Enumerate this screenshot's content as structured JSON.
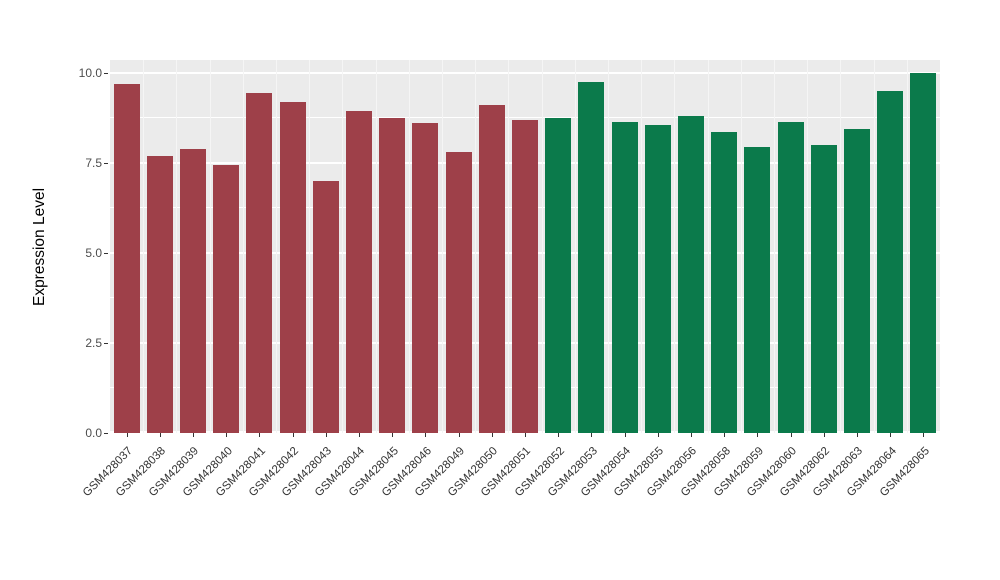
{
  "chart_data": {
    "type": "bar",
    "title": "",
    "xlabel": "",
    "ylabel": "Expression Level",
    "ylim": [
      0,
      10.36
    ],
    "yticks": [
      "0.0",
      "2.5",
      "5.0",
      "7.5",
      "10.0"
    ],
    "ytick_values": [
      0,
      2.5,
      5,
      7.5,
      10
    ],
    "ytick_minor_values": [
      1.25,
      3.75,
      6.25,
      8.75
    ],
    "grid": "on",
    "legend_position": "none",
    "panel_background": "#EBEBEB",
    "grid_color": "#FFFFFF",
    "categories": [
      "GSM428037",
      "GSM428038",
      "GSM428039",
      "GSM428040",
      "GSM428041",
      "GSM428042",
      "GSM428043",
      "GSM428044",
      "GSM428045",
      "GSM428046",
      "GSM428049",
      "GSM428050",
      "GSM428051",
      "GSM428052",
      "GSM428053",
      "GSM428054",
      "GSM428055",
      "GSM428056",
      "GSM428058",
      "GSM428059",
      "GSM428060",
      "GSM428062",
      "GSM428063",
      "GSM428064",
      "GSM428065"
    ],
    "values": [
      9.7,
      7.7,
      7.9,
      7.45,
      9.45,
      9.2,
      7.0,
      8.95,
      8.75,
      8.6,
      7.8,
      9.1,
      8.7,
      8.75,
      9.75,
      8.65,
      8.55,
      8.8,
      8.35,
      7.95,
      8.65,
      8.0,
      8.45,
      9.5,
      10.0
    ],
    "groups": [
      "group1",
      "group1",
      "group1",
      "group1",
      "group1",
      "group1",
      "group1",
      "group1",
      "group1",
      "group1",
      "group1",
      "group1",
      "group1",
      "group2",
      "group2",
      "group2",
      "group2",
      "group2",
      "group2",
      "group2",
      "group2",
      "group2",
      "group2",
      "group2",
      "group2"
    ],
    "group_colors": {
      "group1": "#9E4049",
      "group2": "#0B7A4B"
    }
  }
}
